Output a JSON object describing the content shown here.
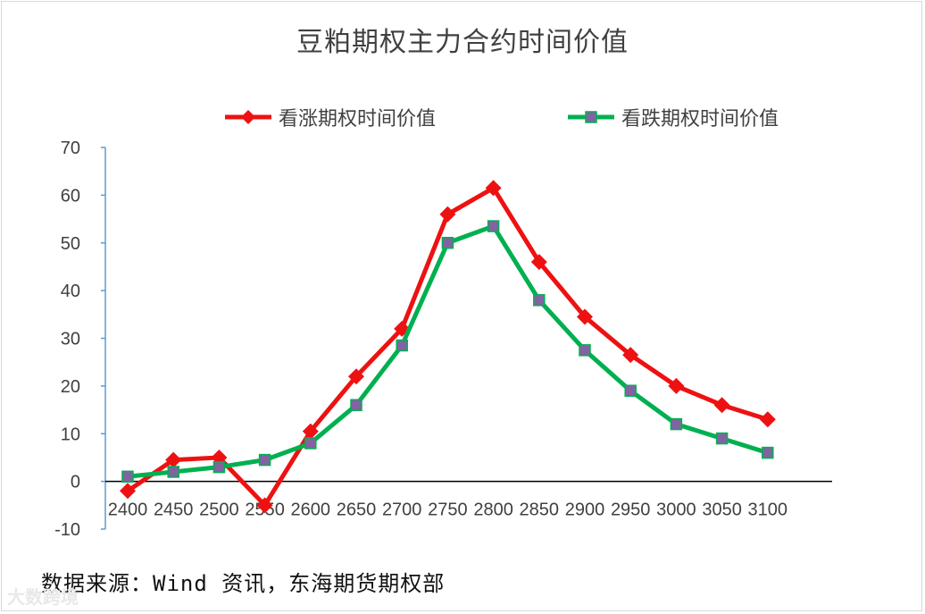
{
  "chart_data": {
    "type": "line",
    "title": "豆粕期权主力合约时间价值",
    "categories": [
      "2400",
      "2450",
      "2500",
      "2550",
      "2600",
      "2650",
      "2700",
      "2750",
      "2800",
      "2850",
      "2900",
      "2950",
      "3000",
      "3050",
      "3100"
    ],
    "series": [
      {
        "name": "看涨期权时间价值",
        "color": "#ee1111",
        "marker": "diamond",
        "values": [
          -2,
          4.5,
          5,
          -5,
          10.5,
          22,
          32,
          56,
          61.5,
          46,
          34.5,
          26.5,
          20,
          16,
          13
        ]
      },
      {
        "name": "看跌期权时间价值",
        "color": "#00b050",
        "marker": "square",
        "marker_color": "#8064a2",
        "values": [
          1,
          2,
          3,
          4.5,
          8,
          16,
          28.5,
          50,
          53.5,
          38,
          27.5,
          19,
          12,
          9,
          6
        ]
      }
    ],
    "ylim": [
      -10,
      70
    ],
    "yticks": [
      -10,
      0,
      10,
      20,
      30,
      40,
      50,
      60,
      70
    ],
    "legend_position": "top",
    "grid": false,
    "source": "数据来源：Wind 资讯，东海期货期权部"
  },
  "watermark": "大数跨境"
}
